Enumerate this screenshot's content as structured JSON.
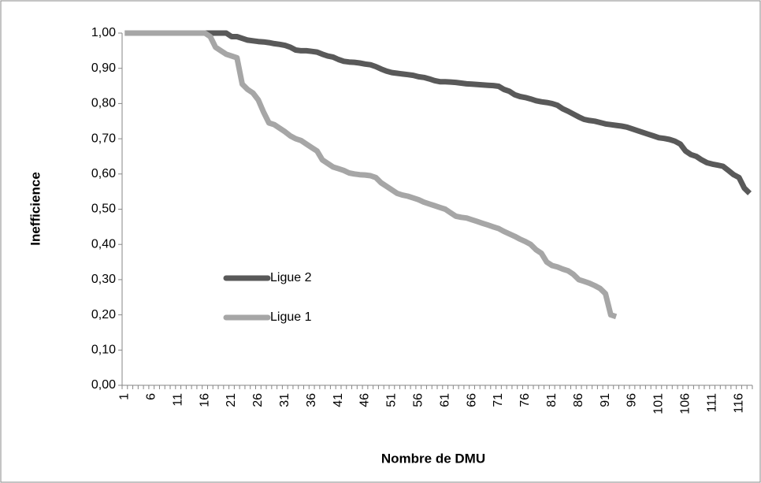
{
  "chart_data": {
    "type": "line",
    "xlabel": "Nombre de DMU",
    "ylabel": "Inefficience",
    "categories": [
      1,
      null,
      null,
      null,
      null,
      6,
      null,
      null,
      null,
      null,
      11,
      null,
      null,
      null,
      null,
      16,
      null,
      null,
      null,
      null,
      21,
      null,
      null,
      null,
      null,
      26,
      null,
      null,
      null,
      null,
      31,
      null,
      null,
      null,
      null,
      36,
      null,
      null,
      null,
      null,
      41,
      null,
      null,
      null,
      null,
      46,
      null,
      null,
      null,
      null,
      51,
      null,
      null,
      null,
      null,
      56,
      null,
      null,
      null,
      null,
      61,
      null,
      null,
      null,
      null,
      66,
      null,
      null,
      null,
      null,
      71,
      null,
      null,
      null,
      null,
      76,
      null,
      null,
      null,
      null,
      81,
      null,
      null,
      null,
      null,
      86,
      null,
      null,
      null,
      null,
      91,
      null,
      null,
      null,
      null,
      96,
      null,
      null,
      null,
      null,
      101,
      null,
      null,
      null,
      null,
      106,
      null,
      null,
      null,
      null,
      111,
      null,
      null,
      null,
      null,
      116,
      null,
      null
    ],
    "series": [
      {
        "name": "Ligue 2",
        "color": "#595959",
        "values": [
          1,
          1,
          1,
          1,
          1,
          1,
          1,
          1,
          1,
          1,
          1,
          1,
          1,
          1,
          1,
          1,
          1,
          1,
          1,
          1,
          0.99,
          0.99,
          0.985,
          0.98,
          0.978,
          0.976,
          0.975,
          0.973,
          0.97,
          0.968,
          0.965,
          0.96,
          0.952,
          0.95,
          0.95,
          0.948,
          0.946,
          0.94,
          0.935,
          0.932,
          0.925,
          0.92,
          0.918,
          0.917,
          0.915,
          0.912,
          0.91,
          0.905,
          0.898,
          0.892,
          0.888,
          0.886,
          0.884,
          0.882,
          0.88,
          0.876,
          0.874,
          0.87,
          0.865,
          0.862,
          0.862,
          0.861,
          0.86,
          0.858,
          0.856,
          0.855,
          0.854,
          0.853,
          0.852,
          0.851,
          0.849,
          0.84,
          0.835,
          0.825,
          0.82,
          0.817,
          0.813,
          0.808,
          0.805,
          0.803,
          0.8,
          0.795,
          0.785,
          0.778,
          0.77,
          0.762,
          0.755,
          0.752,
          0.75,
          0.746,
          0.742,
          0.74,
          0.738,
          0.736,
          0.733,
          0.728,
          0.723,
          0.718,
          0.713,
          0.708,
          0.703,
          0.701,
          0.698,
          0.693,
          0.685,
          0.665,
          0.655,
          0.65,
          0.64,
          0.632,
          0.628,
          0.625,
          0.622,
          0.61,
          0.598,
          0.59,
          0.56,
          0.545
        ]
      },
      {
        "name": "Ligue 1",
        "color": "#a6a6a6",
        "values": [
          1,
          1,
          1,
          1,
          1,
          1,
          1,
          1,
          1,
          1,
          1,
          1,
          1,
          1,
          1,
          1,
          0.99,
          0.96,
          0.95,
          0.94,
          0.935,
          0.93,
          0.855,
          0.84,
          0.83,
          0.81,
          0.775,
          0.745,
          0.74,
          0.73,
          0.72,
          0.708,
          0.7,
          0.695,
          0.685,
          0.675,
          0.665,
          0.64,
          0.63,
          0.62,
          0.615,
          0.61,
          0.603,
          0.6,
          0.598,
          0.597,
          0.595,
          0.59,
          0.575,
          0.565,
          0.555,
          0.545,
          0.54,
          0.537,
          0.532,
          0.527,
          0.52,
          0.515,
          0.51,
          0.505,
          0.5,
          0.49,
          0.48,
          0.477,
          0.475,
          0.47,
          0.465,
          0.46,
          0.455,
          0.45,
          0.445,
          0.437,
          0.43,
          0.423,
          0.415,
          0.408,
          0.4,
          0.385,
          0.375,
          0.35,
          0.34,
          0.336,
          0.33,
          0.325,
          0.315,
          0.3,
          0.295,
          0.29,
          0.283,
          0.275,
          0.26,
          0.2,
          0.195,
          null,
          null,
          null,
          null,
          null,
          null,
          null,
          null,
          null,
          null,
          null,
          null,
          null,
          null,
          null,
          null,
          null,
          null,
          null,
          null,
          null,
          null,
          null,
          null,
          null
        ]
      }
    ],
    "ylim": [
      0,
      1
    ],
    "yticks": [
      {
        "value": 0,
        "label": "0,00"
      },
      {
        "value": 0.1,
        "label": "0,10"
      },
      {
        "value": 0.2,
        "label": "0,20"
      },
      {
        "value": 0.3,
        "label": "0,30"
      },
      {
        "value": 0.4,
        "label": "0,40"
      },
      {
        "value": 0.5,
        "label": "0,50"
      },
      {
        "value": 0.6,
        "label": "0,60"
      },
      {
        "value": 0.7,
        "label": "0,70"
      },
      {
        "value": 0.8,
        "label": "0,80"
      },
      {
        "value": 0.9,
        "label": "0,90"
      },
      {
        "value": 1,
        "label": "1,00"
      }
    ],
    "grid": false,
    "legend": "lower-left"
  }
}
